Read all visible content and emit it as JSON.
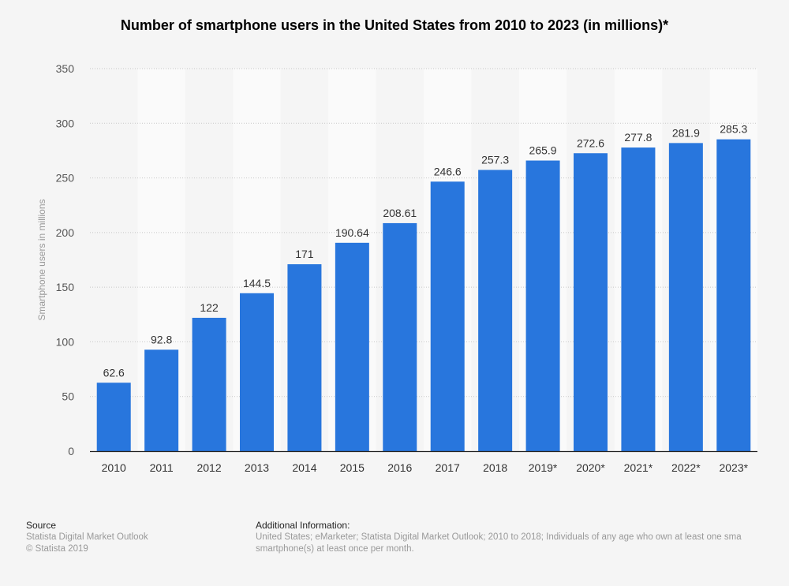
{
  "chart_data": {
    "type": "bar",
    "title": "Number of smartphone users in the United States from 2010 to 2023 (in millions)*",
    "xlabel": "",
    "ylabel": "Smartphone users in millions",
    "ylim": [
      0,
      350
    ],
    "yticks": [
      "0",
      "50",
      "100",
      "150",
      "200",
      "250",
      "300",
      "350"
    ],
    "grid": true,
    "categories": [
      "2010",
      "2011",
      "2012",
      "2013",
      "2014",
      "2015",
      "2016",
      "2017",
      "2018",
      "2019*",
      "2020*",
      "2021*",
      "2022*",
      "2023*"
    ],
    "values": [
      62.6,
      92.8,
      122,
      144.5,
      171,
      190.64,
      208.61,
      246.6,
      257.3,
      265.9,
      272.6,
      277.8,
      281.9,
      285.3
    ],
    "labels": [
      "62.6",
      "92.8",
      "122",
      "144.5",
      "171",
      "190.64",
      "208.61",
      "246.6",
      "257.3",
      "265.9",
      "272.6",
      "277.8",
      "281.9",
      "285.3"
    ],
    "bar_color": "#2876dd"
  },
  "footer": {
    "source_heading": "Source",
    "source_lines": [
      "Statista Digital Market Outlook",
      "© Statista 2019"
    ],
    "info_heading": "Additional Information:",
    "info_lines": [
      "United States; eMarketer; Statista Digital Market Outlook; 2010 to 2018; Individuals of any age who own at least one sma",
      "smartphone(s) at least once per month."
    ]
  }
}
